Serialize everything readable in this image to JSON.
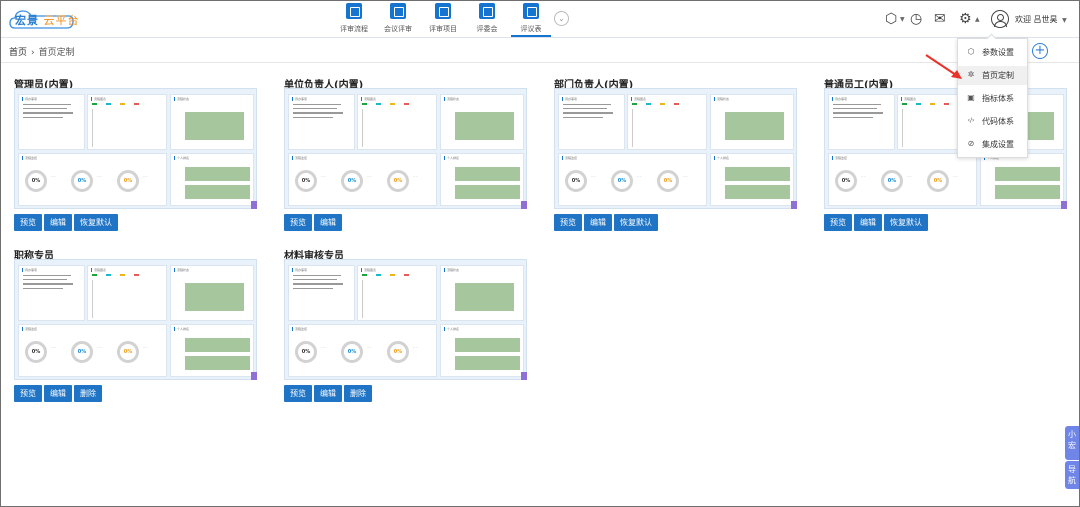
{
  "app": {
    "logo_primary": "宏景",
    "logo_secondary": "云平台",
    "welcome": "欢迎 吕世昊"
  },
  "nav": [
    {
      "label": "评审流程"
    },
    {
      "label": "会议评审"
    },
    {
      "label": "评审项目"
    },
    {
      "label": "评委会"
    },
    {
      "label": "评议表"
    }
  ],
  "breadcrumb": {
    "home": "首页",
    "separator": "›",
    "current": "首页定制"
  },
  "menu": [
    {
      "label": "参数设置",
      "icon": "gear-outline-icon",
      "glyph": "⬡"
    },
    {
      "label": "首页定制",
      "icon": "puzzle-icon",
      "glyph": "✲",
      "highlighted": true
    },
    {
      "label": "指标体系",
      "icon": "chart-sheet-icon",
      "glyph": "▣"
    },
    {
      "label": "代码体系",
      "icon": "code-icon",
      "glyph": "‹/›"
    },
    {
      "label": "集成设置",
      "icon": "link-icon",
      "glyph": "⊘"
    }
  ],
  "cards": [
    {
      "title": "管理员(内置)",
      "buttons": [
        "预览",
        "编辑",
        "恢复默认"
      ]
    },
    {
      "title": "单位负责人(内置)",
      "buttons": [
        "预览",
        "编辑"
      ]
    },
    {
      "title": "部门负责人(内置)",
      "buttons": [
        "预览",
        "编辑",
        "恢复默认"
      ]
    },
    {
      "title": "普通员工(内置)",
      "buttons": [
        "预览",
        "编辑",
        "恢复默认"
      ]
    },
    {
      "title": "职称专员",
      "buttons": [
        "预览",
        "编辑",
        "删除"
      ]
    },
    {
      "title": "材料审核专员",
      "buttons": [
        "预览",
        "编辑",
        "删除"
      ]
    }
  ],
  "thumb_text": {
    "tasks": "待办事项",
    "chart": "流程图表",
    "flow": "流程状态",
    "ring": "流程监控",
    "person": "个人排名",
    "ring_values": [
      "0%",
      "0%",
      "0%"
    ]
  },
  "side_tab": {
    "top": "小宏",
    "bottom": "导航"
  },
  "colors": {
    "primary": "#1474cf",
    "button": "#1f74c6",
    "green_block": "#a6c79d",
    "side_tab": "#6f85e8",
    "arrow": "#e8322a"
  },
  "legend_colors": [
    "#1aa63a",
    "#19b9c9",
    "#f0b419",
    "#e85a5a"
  ]
}
